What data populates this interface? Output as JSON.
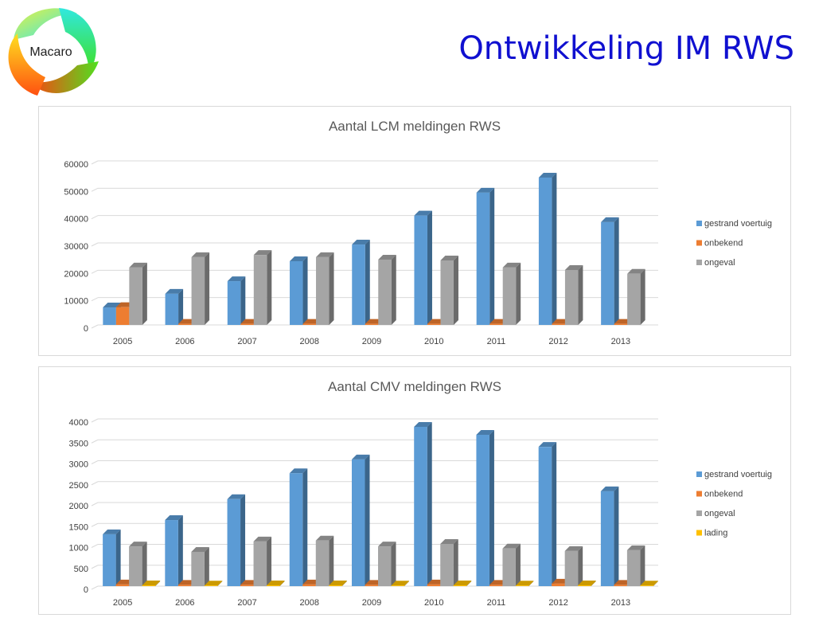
{
  "header": {
    "title": "Ontwikkeling IM RWS",
    "logo_text": "Macaro"
  },
  "colors": {
    "gestrand voertuig": "#5b9bd5",
    "onbekend": "#ed7d31",
    "ongeval": "#a5a5a5",
    "lading": "#ffc000",
    "title": "#1010d0"
  },
  "chart_data": [
    {
      "type": "bar",
      "title": "Aantal LCM meldingen RWS",
      "xlabel": "",
      "ylabel": "",
      "categories": [
        "2005",
        "2006",
        "2007",
        "2008",
        "2009",
        "2010",
        "2011",
        "2012",
        "2013"
      ],
      "ylim": [
        0,
        60000
      ],
      "yticks": [
        0,
        10000,
        20000,
        30000,
        40000,
        50000,
        60000
      ],
      "grid": true,
      "legend": "right",
      "series": [
        {
          "name": "gestrand voertuig",
          "values": [
            6400,
            11400,
            16000,
            23300,
            29400,
            40000,
            48400,
            53900,
            37600
          ]
        },
        {
          "name": "onbekend",
          "values": [
            6500,
            400,
            400,
            400,
            400,
            400,
            400,
            400,
            400
          ]
        },
        {
          "name": "ongeval",
          "values": [
            21000,
            24800,
            25600,
            24800,
            23900,
            23600,
            21000,
            20100,
            18700
          ]
        }
      ]
    },
    {
      "type": "bar",
      "title": "Aantal CMV meldingen RWS",
      "xlabel": "",
      "ylabel": "",
      "categories": [
        "2005",
        "2006",
        "2007",
        "2008",
        "2009",
        "2010",
        "2011",
        "2012",
        "2013"
      ],
      "ylim": [
        0,
        4000
      ],
      "yticks": [
        0,
        500,
        1000,
        1500,
        2000,
        2500,
        3000,
        3500,
        4000
      ],
      "grid": true,
      "legend": "right",
      "series": [
        {
          "name": "gestrand voertuig",
          "values": [
            1240,
            1580,
            2080,
            2700,
            3030,
            3810,
            3620,
            3330,
            2270
          ]
        },
        {
          "name": "onbekend",
          "values": [
            40,
            30,
            30,
            40,
            30,
            40,
            30,
            60,
            30
          ]
        },
        {
          "name": "ongeval",
          "values": [
            950,
            820,
            1070,
            1090,
            950,
            1010,
            900,
            840,
            860
          ]
        },
        {
          "name": "lading",
          "values": [
            20,
            15,
            20,
            20,
            15,
            20,
            15,
            20,
            15
          ]
        }
      ]
    }
  ]
}
